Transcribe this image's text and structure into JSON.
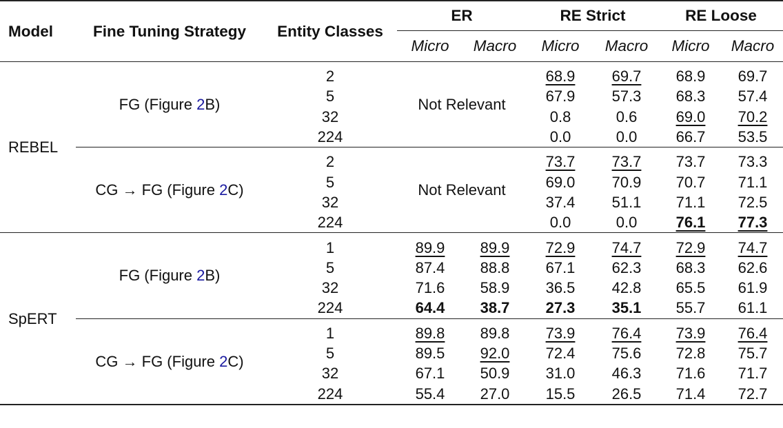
{
  "headers": {
    "model": "Model",
    "strategy": "Fine Tuning Strategy",
    "entity_classes": "Entity Classes",
    "er": "ER",
    "re_strict": "RE Strict",
    "re_loose": "RE Loose",
    "micro": "Micro",
    "macro": "Macro"
  },
  "models": [
    {
      "name": "REBEL",
      "groups": [
        {
          "strategy_prefix": "FG (Figure ",
          "strategy_ref": "2",
          "strategy_suffix": "B)",
          "not_relevant": "Not Relevant",
          "rows": [
            {
              "classes": "2",
              "re_strict_micro": "68.9",
              "re_strict_macro": "69.7",
              "re_loose_micro": "68.9",
              "re_loose_macro": "69.7"
            },
            {
              "classes": "5",
              "re_strict_micro": "67.9",
              "re_strict_macro": "57.3",
              "re_loose_micro": "68.3",
              "re_loose_macro": "57.4"
            },
            {
              "classes": "32",
              "re_strict_micro": "0.8",
              "re_strict_macro": "0.6",
              "re_loose_micro": "69.0",
              "re_loose_macro": "70.2"
            },
            {
              "classes": "224",
              "re_strict_micro": "0.0",
              "re_strict_macro": "0.0",
              "re_loose_micro": "66.7",
              "re_loose_macro": "53.5"
            }
          ]
        },
        {
          "strategy_prefix": "CG → FG (Figure ",
          "strategy_ref": "2",
          "strategy_suffix": "C)",
          "not_relevant": "Not Relevant",
          "rows": [
            {
              "classes": "2",
              "re_strict_micro": "73.7",
              "re_strict_macro": "73.7",
              "re_loose_micro": "73.7",
              "re_loose_macro": "73.3"
            },
            {
              "classes": "5",
              "re_strict_micro": "69.0",
              "re_strict_macro": "70.9",
              "re_loose_micro": "70.7",
              "re_loose_macro": "71.1"
            },
            {
              "classes": "32",
              "re_strict_micro": "37.4",
              "re_strict_macro": "51.1",
              "re_loose_micro": "71.1",
              "re_loose_macro": "72.5"
            },
            {
              "classes": "224",
              "re_strict_micro": "0.0",
              "re_strict_macro": "0.0",
              "re_loose_micro": "76.1",
              "re_loose_macro": "77.3"
            }
          ]
        }
      ]
    },
    {
      "name": "SpERT",
      "groups": [
        {
          "strategy_prefix": "FG (Figure ",
          "strategy_ref": "2",
          "strategy_suffix": "B)",
          "rows": [
            {
              "classes": "1",
              "er_micro": "89.9",
              "er_macro": "89.9",
              "re_strict_micro": "72.9",
              "re_strict_macro": "74.7",
              "re_loose_micro": "72.9",
              "re_loose_macro": "74.7"
            },
            {
              "classes": "5",
              "er_micro": "87.4",
              "er_macro": "88.8",
              "re_strict_micro": "67.1",
              "re_strict_macro": "62.3",
              "re_loose_micro": "68.3",
              "re_loose_macro": "62.6"
            },
            {
              "classes": "32",
              "er_micro": "71.6",
              "er_macro": "58.9",
              "re_strict_micro": "36.5",
              "re_strict_macro": "42.8",
              "re_loose_micro": "65.5",
              "re_loose_macro": "61.9"
            },
            {
              "classes": "224",
              "er_micro": "64.4",
              "er_macro": "38.7",
              "re_strict_micro": "27.3",
              "re_strict_macro": "35.1",
              "re_loose_micro": "55.7",
              "re_loose_macro": "61.1"
            }
          ]
        },
        {
          "strategy_prefix": "CG → FG (Figure ",
          "strategy_ref": "2",
          "strategy_suffix": "C)",
          "rows": [
            {
              "classes": "1",
              "er_micro": "89.8",
              "er_macro": "89.8",
              "re_strict_micro": "73.9",
              "re_strict_macro": "76.4",
              "re_loose_micro": "73.9",
              "re_loose_macro": "76.4"
            },
            {
              "classes": "5",
              "er_micro": "89.5",
              "er_macro": "92.0",
              "re_strict_micro": "72.4",
              "re_strict_macro": "75.6",
              "re_loose_micro": "72.8",
              "re_loose_macro": "75.7"
            },
            {
              "classes": "32",
              "er_micro": "67.1",
              "er_macro": "50.9",
              "re_strict_micro": "31.0",
              "re_strict_macro": "46.3",
              "re_loose_micro": "71.6",
              "re_loose_macro": "71.7"
            },
            {
              "classes": "224",
              "er_micro": "55.4",
              "er_macro": "27.0",
              "re_strict_micro": "15.5",
              "re_strict_macro": "26.5",
              "re_loose_micro": "71.4",
              "re_loose_macro": "72.7"
            }
          ]
        }
      ]
    }
  ]
}
